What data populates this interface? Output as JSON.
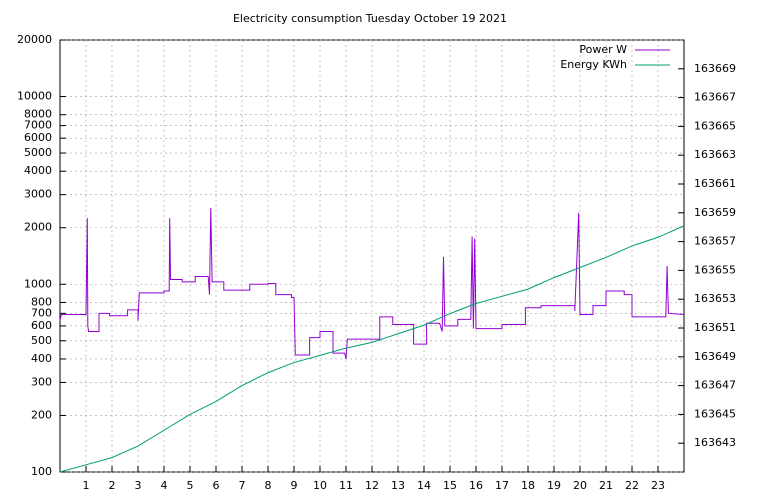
{
  "chart_data": {
    "type": "line",
    "title": "Electricity consumption Tuesday October 19 2021",
    "yscale": "log",
    "grid": true,
    "legend": "top-right",
    "xlim": [
      0,
      24
    ],
    "xticks": [
      1,
      2,
      3,
      4,
      5,
      6,
      7,
      8,
      9,
      10,
      11,
      12,
      13,
      14,
      15,
      16,
      17,
      18,
      19,
      20,
      21,
      22,
      23
    ],
    "ylim": [
      100,
      20000
    ],
    "yticks": [
      100,
      200,
      300,
      400,
      500,
      600,
      700,
      800,
      1000,
      2000,
      3000,
      4000,
      5000,
      6000,
      7000,
      8000,
      10000,
      20000
    ],
    "y2lim": [
      163641,
      163671
    ],
    "y2ticks": [
      163643,
      163645,
      163647,
      163649,
      163651,
      163653,
      163655,
      163657,
      163659,
      163661,
      163663,
      163665,
      163667,
      163669
    ],
    "series": [
      {
        "name": "Power W",
        "color": "#9400d3",
        "step": true,
        "x": [
          0,
          0.05,
          1.0,
          1.05,
          1.07,
          1.1,
          1.5,
          1.5,
          1.9,
          1.9,
          2.6,
          2.6,
          3.0,
          3.0,
          3.05,
          4.0,
          4.0,
          4.2,
          4.22,
          4.25,
          4.7,
          4.7,
          5.2,
          5.2,
          5.7,
          5.75,
          5.8,
          5.85,
          6.3,
          6.3,
          7.3,
          7.3,
          8.0,
          8.0,
          8.3,
          8.3,
          8.9,
          8.9,
          9.0,
          9.05,
          9.6,
          9.6,
          10.0,
          10.0,
          10.5,
          10.5,
          10.95,
          11.0,
          11.05,
          12.3,
          12.3,
          12.8,
          12.8,
          13.6,
          13.6,
          14.1,
          14.1,
          14.6,
          14.7,
          14.75,
          14.8,
          15.3,
          15.3,
          15.8,
          15.85,
          15.9,
          15.95,
          16.0,
          17.0,
          17.0,
          17.9,
          17.9,
          18.5,
          18.5,
          19.8,
          19.8,
          19.95,
          20.0,
          20.5,
          20.5,
          21.0,
          21.0,
          21.7,
          21.7,
          22.0,
          22.0,
          23.3,
          23.35,
          23.4,
          24.0
        ],
        "values": [
          640,
          690,
          690,
          2250,
          600,
          560,
          560,
          700,
          700,
          680,
          680,
          730,
          730,
          640,
          900,
          900,
          920,
          920,
          2250,
          1060,
          1060,
          1030,
          1030,
          1100,
          1100,
          880,
          2550,
          1030,
          1030,
          930,
          930,
          1000,
          1000,
          1010,
          1010,
          880,
          880,
          850,
          850,
          420,
          420,
          520,
          520,
          560,
          560,
          430,
          430,
          400,
          510,
          510,
          670,
          670,
          610,
          610,
          480,
          480,
          620,
          620,
          560,
          1400,
          600,
          600,
          650,
          650,
          1800,
          580,
          1750,
          580,
          580,
          610,
          610,
          750,
          750,
          770,
          770,
          720,
          2400,
          690,
          690,
          770,
          770,
          920,
          920,
          880,
          880,
          670,
          670,
          1250,
          700,
          690
        ]
      },
      {
        "name": "Energy KWh",
        "color": "#009e73",
        "axis": "y2",
        "x": [
          0,
          1,
          2,
          3,
          4,
          5,
          6,
          7,
          8,
          9,
          10,
          11,
          12,
          13,
          14,
          15,
          16,
          17,
          18,
          19,
          20,
          21,
          22,
          23,
          24
        ],
        "values": [
          163641.0,
          163641.5,
          163642.0,
          163642.8,
          163643.9,
          163645.0,
          163645.9,
          163647.0,
          163647.9,
          163648.6,
          163649.1,
          163649.6,
          163650.0,
          163650.6,
          163651.2,
          163652.0,
          163652.7,
          163653.2,
          163653.7,
          163654.5,
          163655.2,
          163655.9,
          163656.7,
          163657.3,
          163658.1
        ]
      }
    ]
  }
}
